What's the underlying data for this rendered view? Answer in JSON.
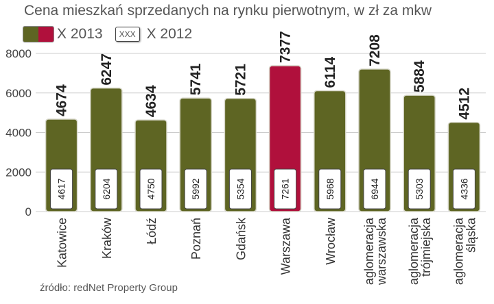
{
  "title": "Cena mieszkań sprzedanych na rynku pierwotnym, w zł za mkw",
  "legend": {
    "series_2013": "X 2013",
    "series_2012": "X 2012",
    "sample_box": "XXX"
  },
  "source": "źródło: redNet Property Group",
  "colors": {
    "bar_main": "#5e6523",
    "bar_highlight": "#b0103c",
    "grid": "#cccccc",
    "text": "#333333"
  },
  "chart_data": {
    "type": "bar",
    "title": "Cena mieszkań sprzedanych na rynku pierwotnym, w zł za mkw",
    "xlabel": "",
    "ylabel": "",
    "ylim": [
      0,
      8000
    ],
    "yticks": [
      0,
      2000,
      4000,
      6000,
      8000
    ],
    "grid": true,
    "legend_position": "top-left",
    "categories": [
      [
        "Katowice"
      ],
      [
        "Kraków"
      ],
      [
        "Łódź"
      ],
      [
        "Poznań"
      ],
      [
        "Gdańsk"
      ],
      [
        "Warszawa"
      ],
      [
        "Wrocław"
      ],
      [
        "aglomeracja",
        "warszawska"
      ],
      [
        "aglomeracja",
        "trójmiejska"
      ],
      [
        "aglomeracja",
        "śląska"
      ]
    ],
    "highlight_index": 5,
    "series": [
      {
        "name": "X 2013",
        "values": [
          4674,
          6247,
          4634,
          5741,
          5721,
          7377,
          6114,
          7208,
          5884,
          4512
        ]
      },
      {
        "name": "X 2012",
        "values": [
          4617,
          6204,
          4750,
          5992,
          5354,
          7261,
          5968,
          6944,
          5303,
          4336
        ]
      }
    ]
  }
}
